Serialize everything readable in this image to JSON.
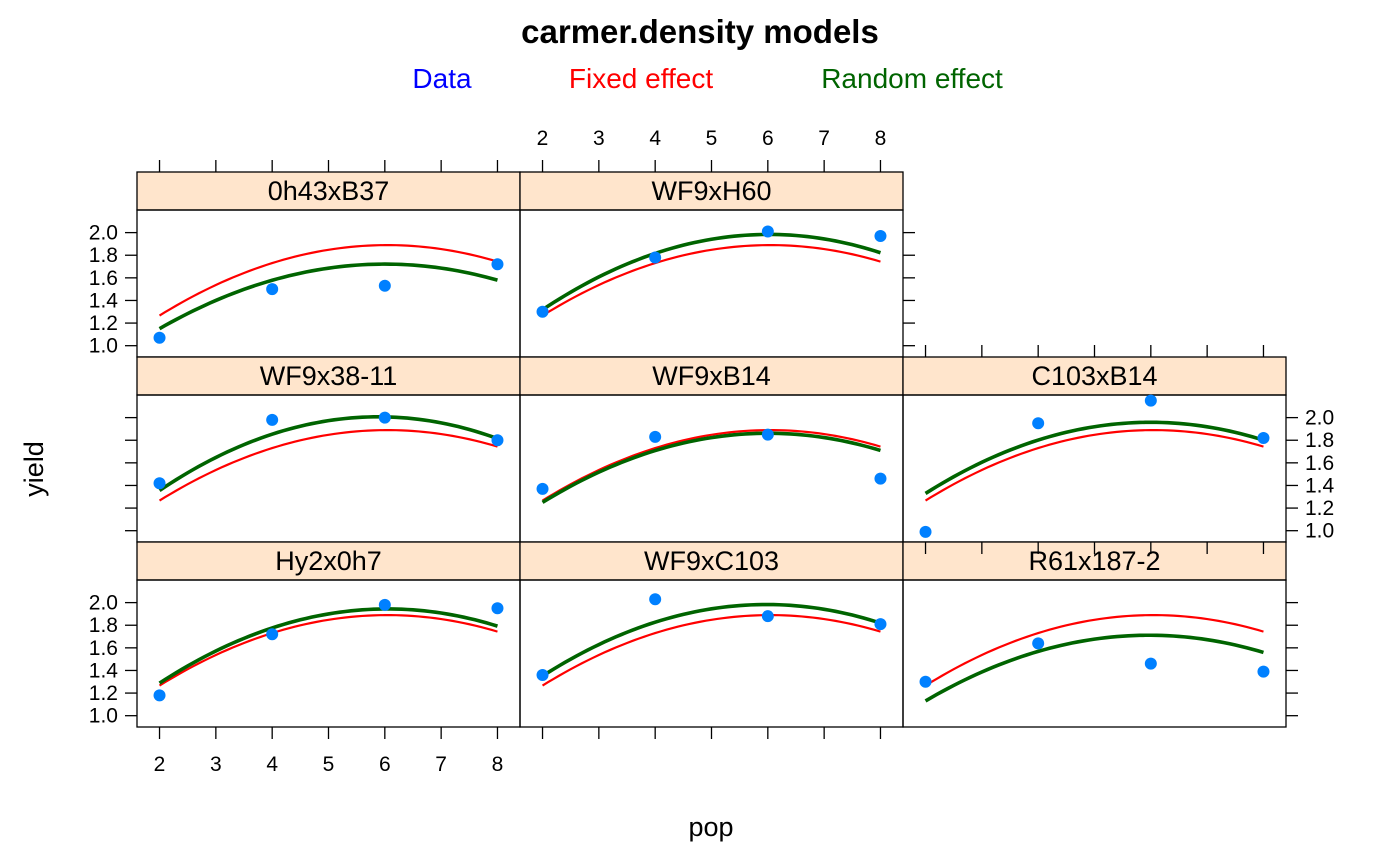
{
  "chart_data": {
    "type": "scatter",
    "title": "carmer.density models",
    "xlabel": "pop",
    "ylabel": "yield",
    "xlim": [
      1.6,
      8.4
    ],
    "ylim": [
      0.9,
      2.2
    ],
    "x_ticks": [
      2,
      3,
      4,
      5,
      6,
      7,
      8
    ],
    "y_ticks": [
      1.0,
      1.2,
      1.4,
      1.6,
      1.8,
      2.0
    ],
    "legend": {
      "placement": "top",
      "items": [
        {
          "label": "Data",
          "color": "#0000ff"
        },
        {
          "label": "Fixed effect",
          "color": "#ff0000"
        },
        {
          "label": "Random effect",
          "color": "#006400"
        }
      ]
    },
    "colors": {
      "point": "#0080ff",
      "fixed": "#ff0000",
      "random": "#006400",
      "strip": "#ffe5cc"
    },
    "x": [
      2,
      4,
      6,
      8
    ],
    "fixed_curve": [
      1.26,
      1.75,
      1.87,
      1.75
    ],
    "panels": [
      {
        "name": "Hy2x0h7",
        "points": [
          1.18,
          1.72,
          1.98,
          1.95
        ],
        "random": [
          1.28,
          1.8,
          1.92,
          1.8
        ]
      },
      {
        "name": "WF9xC103",
        "points": [
          1.36,
          2.03,
          1.88,
          1.81
        ],
        "random": [
          1.34,
          1.86,
          1.95,
          1.83
        ]
      },
      {
        "name": "R61x187-2",
        "points": [
          1.3,
          1.64,
          1.46,
          1.39
        ],
        "random": [
          1.12,
          1.6,
          1.68,
          1.57
        ]
      },
      {
        "name": "WF9x38-11",
        "points": [
          1.42,
          1.98,
          2.0,
          1.8
        ],
        "random": [
          1.35,
          1.87,
          1.99,
          1.82
        ]
      },
      {
        "name": "WF9xB14",
        "points": [
          1.37,
          1.83,
          1.85,
          1.46
        ],
        "random": [
          1.24,
          1.74,
          1.83,
          1.72
        ]
      },
      {
        "name": "C103xB14",
        "points": [
          0.99,
          1.95,
          2.15,
          1.82
        ],
        "random": [
          1.32,
          1.83,
          1.93,
          1.81
        ]
      },
      {
        "name": "0h43xB37",
        "points": [
          1.07,
          1.5,
          1.53,
          1.72
        ],
        "random": [
          1.14,
          1.61,
          1.69,
          1.59
        ]
      },
      {
        "name": "WF9xH60",
        "points": [
          1.3,
          1.78,
          2.01,
          1.97
        ],
        "random": [
          1.31,
          1.84,
          1.96,
          1.83
        ]
      }
    ]
  }
}
